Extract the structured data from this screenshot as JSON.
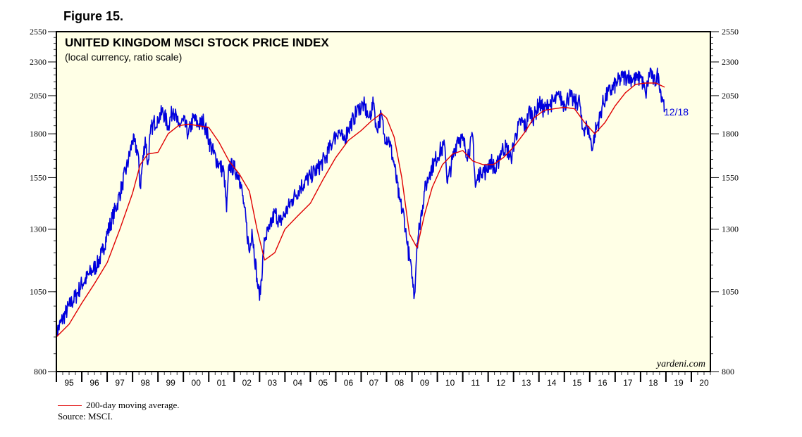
{
  "figure_label": "Figure 15.",
  "chart_data": {
    "type": "line",
    "title": "UNITED KINGDOM MSCI STOCK PRICE INDEX",
    "subtitle": "(local currency, ratio scale)",
    "y_scale": "log",
    "ylim": [
      800,
      2550
    ],
    "yticks": [
      800,
      1050,
      1300,
      1550,
      1800,
      2050,
      2300,
      2550
    ],
    "xlim": [
      1995.0,
      2020.75
    ],
    "x_tick_labels": [
      "95",
      "96",
      "97",
      "98",
      "99",
      "00",
      "01",
      "02",
      "03",
      "04",
      "05",
      "06",
      "07",
      "08",
      "09",
      "10",
      "11",
      "12",
      "13",
      "14",
      "15",
      "16",
      "17",
      "18",
      "19",
      "20"
    ],
    "last_date_label": "12/18",
    "watermark": "yardeni.com",
    "colors": {
      "index": "#0000dd",
      "moving_average": "#e00000",
      "background": "#ffffe6"
    },
    "series": [
      {
        "name": "",
        "x": [
          1995.0,
          1995.2,
          1995.5,
          1995.8,
          1996.0,
          1996.2,
          1996.4,
          1996.6,
          1996.8,
          1997.0,
          1997.2,
          1997.4,
          1997.6,
          1997.8,
          1998.0,
          1998.2,
          1998.3,
          1998.5,
          1998.6,
          1998.7,
          1998.8,
          1999.0,
          1999.2,
          1999.4,
          1999.6,
          1999.8,
          2000.0,
          2000.2,
          2000.4,
          2000.6,
          2000.8,
          2001.0,
          2001.2,
          2001.4,
          2001.6,
          2001.7,
          2001.8,
          2002.0,
          2002.2,
          2002.4,
          2002.6,
          2002.7,
          2002.9,
          2003.0,
          2003.2,
          2003.4,
          2003.6,
          2003.8,
          2004.0,
          2004.3,
          2004.6,
          2005.0,
          2005.3,
          2005.6,
          2005.9,
          2006.1,
          2006.3,
          2006.5,
          2006.7,
          2006.9,
          2007.1,
          2007.3,
          2007.5,
          2007.6,
          2007.8,
          2007.9,
          2008.1,
          2008.3,
          2008.5,
          2008.7,
          2008.8,
          2008.9,
          2009.0,
          2009.1,
          2009.2,
          2009.3,
          2009.5,
          2009.7,
          2009.9,
          2010.1,
          2010.3,
          2010.4,
          2010.6,
          2010.8,
          2011.0,
          2011.2,
          2011.4,
          2011.5,
          2011.7,
          2011.9,
          2012.1,
          2012.3,
          2012.5,
          2012.7,
          2012.9,
          2013.1,
          2013.3,
          2013.5,
          2013.6,
          2013.8,
          2014.0,
          2014.2,
          2014.4,
          2014.6,
          2014.8,
          2015.0,
          2015.2,
          2015.4,
          2015.6,
          2015.7,
          2015.9,
          2016.0,
          2016.1,
          2016.2,
          2016.4,
          2016.5,
          2016.7,
          2016.9,
          2017.1,
          2017.3,
          2017.5,
          2017.7,
          2017.9,
          2018.0,
          2018.2,
          2018.4,
          2018.5,
          2018.7,
          2018.8,
          2018.9,
          2018.95
        ],
        "values": [
          910,
          950,
          1000,
          1040,
          1080,
          1100,
          1130,
          1150,
          1200,
          1280,
          1350,
          1420,
          1520,
          1620,
          1760,
          1700,
          1500,
          1780,
          1620,
          1800,
          1860,
          1900,
          1940,
          1850,
          1960,
          1850,
          1880,
          1800,
          1900,
          1850,
          1880,
          1760,
          1680,
          1620,
          1580,
          1380,
          1620,
          1600,
          1560,
          1400,
          1200,
          1300,
          1100,
          1020,
          1260,
          1300,
          1380,
          1330,
          1370,
          1440,
          1500,
          1560,
          1600,
          1660,
          1760,
          1820,
          1760,
          1830,
          1900,
          1960,
          1990,
          1900,
          2000,
          1830,
          1920,
          1800,
          1760,
          1620,
          1440,
          1350,
          1240,
          1180,
          1100,
          1040,
          1240,
          1320,
          1480,
          1580,
          1640,
          1700,
          1720,
          1520,
          1650,
          1780,
          1760,
          1680,
          1780,
          1500,
          1600,
          1580,
          1650,
          1580,
          1700,
          1720,
          1660,
          1800,
          1880,
          1840,
          1960,
          1900,
          2000,
          1950,
          1990,
          2010,
          2040,
          1990,
          2050,
          2000,
          2010,
          1830,
          1850,
          1790,
          1700,
          1810,
          1900,
          1990,
          2060,
          2100,
          2150,
          2180,
          2190,
          2170,
          2160,
          2200,
          2060,
          2250,
          2130,
          2210,
          2080,
          2020,
          1950
        ]
      },
      {
        "name": "200-day moving average.",
        "x": [
          1995.0,
          1995.5,
          1996.0,
          1996.5,
          1997.0,
          1997.5,
          1998.0,
          1998.3,
          1998.6,
          1999.0,
          1999.4,
          1999.8,
          2000.2,
          2000.6,
          2001.0,
          2001.4,
          2001.8,
          2002.2,
          2002.6,
          2002.9,
          2003.2,
          2003.6,
          2004.0,
          2004.5,
          2005.0,
          2005.5,
          2006.0,
          2006.5,
          2007.0,
          2007.4,
          2007.8,
          2008.0,
          2008.3,
          2008.6,
          2008.9,
          2009.2,
          2009.5,
          2009.8,
          2010.2,
          2010.6,
          2011.0,
          2011.4,
          2011.8,
          2012.2,
          2012.6,
          2013.0,
          2013.4,
          2013.8,
          2014.2,
          2014.6,
          2015.0,
          2015.4,
          2015.8,
          2016.2,
          2016.6,
          2017.0,
          2017.4,
          2017.8,
          2018.2,
          2018.6,
          2018.95
        ],
        "values": [
          900,
          940,
          1010,
          1080,
          1160,
          1300,
          1470,
          1620,
          1680,
          1690,
          1800,
          1850,
          1860,
          1850,
          1840,
          1750,
          1640,
          1570,
          1480,
          1300,
          1170,
          1200,
          1300,
          1360,
          1420,
          1540,
          1660,
          1760,
          1820,
          1880,
          1930,
          1900,
          1780,
          1550,
          1280,
          1220,
          1370,
          1500,
          1620,
          1680,
          1700,
          1640,
          1620,
          1620,
          1660,
          1720,
          1800,
          1900,
          1950,
          1960,
          1970,
          1960,
          1870,
          1800,
          1870,
          1980,
          2070,
          2130,
          2140,
          2140,
          2110
        ]
      }
    ]
  },
  "legend": {
    "entry": "200-day moving average.",
    "source": "Source: MSCI."
  }
}
